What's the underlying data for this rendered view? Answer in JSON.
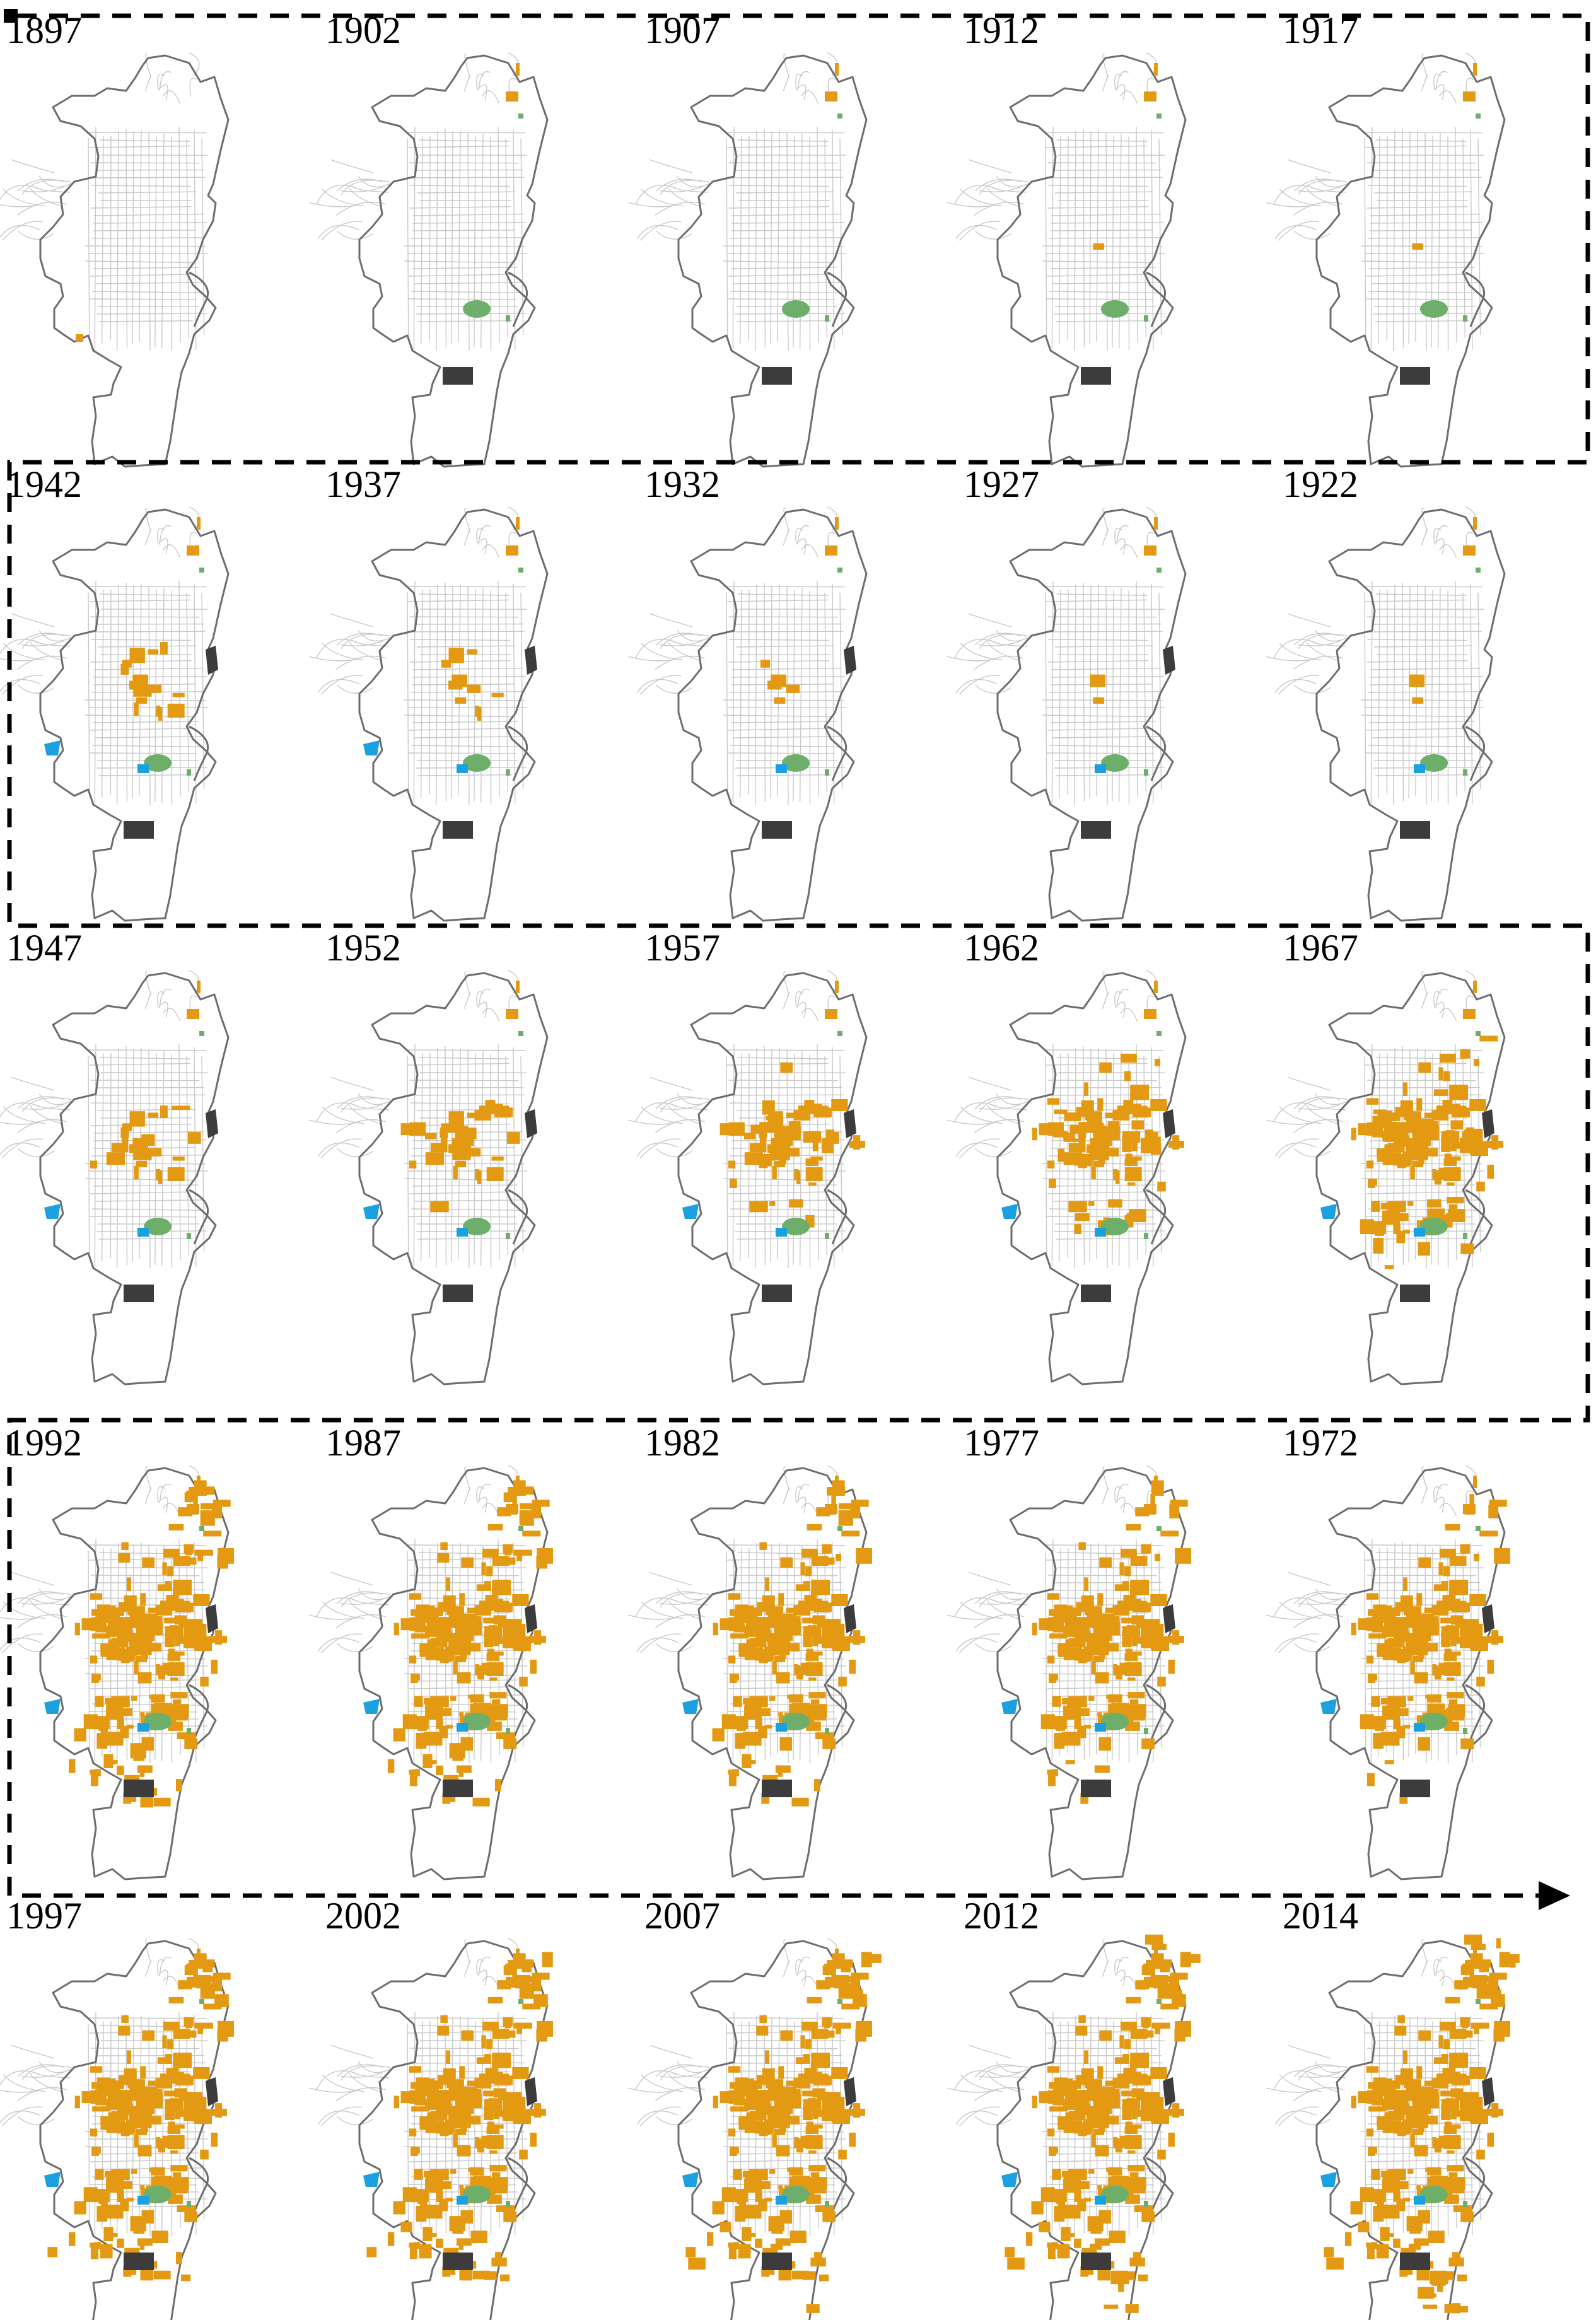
{
  "colors": {
    "residential": "#E39A12",
    "park": "#6DAF6A",
    "water": "#1BA0E0",
    "industrial": "#3C3C3C",
    "street": "#C9C9C9",
    "outline": "#6D6D6D",
    "path": "#000000"
  },
  "timeline": [
    {
      "year": "1897",
      "level": 0.01
    },
    {
      "year": "1902",
      "level": 0.05
    },
    {
      "year": "1907",
      "level": 0.06
    },
    {
      "year": "1912",
      "level": 0.07
    },
    {
      "year": "1917",
      "level": 0.08
    },
    {
      "year": "1922",
      "level": 0.1
    },
    {
      "year": "1927",
      "level": 0.12
    },
    {
      "year": "1932",
      "level": 0.14
    },
    {
      "year": "1937",
      "level": 0.16
    },
    {
      "year": "1942",
      "level": 0.18
    },
    {
      "year": "1947",
      "level": 0.22
    },
    {
      "year": "1952",
      "level": 0.28
    },
    {
      "year": "1957",
      "level": 0.36
    },
    {
      "year": "1962",
      "level": 0.45
    },
    {
      "year": "1967",
      "level": 0.55
    },
    {
      "year": "1972",
      "level": 0.62
    },
    {
      "year": "1977",
      "level": 0.68
    },
    {
      "year": "1982",
      "level": 0.73
    },
    {
      "year": "1987",
      "level": 0.78
    },
    {
      "year": "1992",
      "level": 0.82
    },
    {
      "year": "1997",
      "level": 0.86
    },
    {
      "year": "2002",
      "level": 0.9
    },
    {
      "year": "2007",
      "level": 0.93
    },
    {
      "year": "2012",
      "level": 0.96
    },
    {
      "year": "2014",
      "level": 1.0
    }
  ],
  "features": {
    "water_from_year": "1922",
    "industrial_tilt_from_year": "1927"
  }
}
